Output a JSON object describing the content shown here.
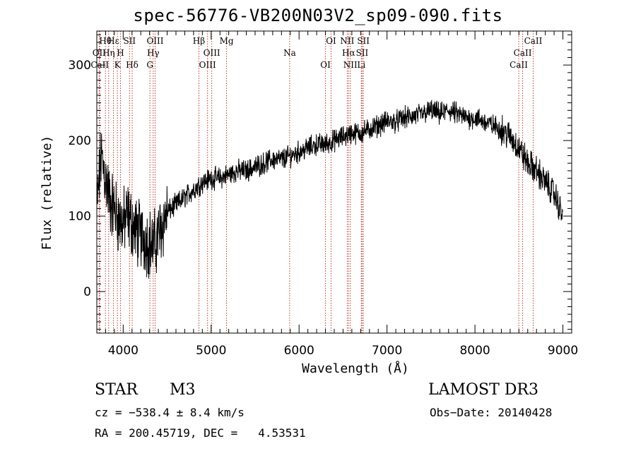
{
  "chart_data": {
    "type": "line",
    "title": "spec-56776-VB200N03V2_sp09-090.fits",
    "xlabel": "Wavelength (Å)",
    "ylabel": "Flux (relative)",
    "xlim": [
      3700,
      9100
    ],
    "ylim": [
      -55,
      345
    ],
    "x_ticks": [
      4000,
      5000,
      6000,
      7000,
      8000,
      9000
    ],
    "y_ticks": [
      0,
      100,
      200,
      300
    ],
    "grid": false,
    "series": [
      {
        "name": "flux",
        "x": [
          3700,
          3750,
          3800,
          3850,
          3900,
          3950,
          4000,
          4050,
          4100,
          4150,
          4200,
          4250,
          4300,
          4350,
          4400,
          4450,
          4500,
          4600,
          4700,
          4800,
          4900,
          5000,
          5100,
          5200,
          5300,
          5400,
          5500,
          5600,
          5700,
          5800,
          5900,
          6000,
          6100,
          6200,
          6300,
          6400,
          6500,
          6600,
          6700,
          6800,
          6900,
          7000,
          7100,
          7200,
          7300,
          7400,
          7500,
          7600,
          7700,
          7800,
          7900,
          8000,
          8100,
          8200,
          8300,
          8400,
          8500,
          8600,
          8700,
          8800,
          8900,
          9000
        ],
        "values": [
          110,
          180,
          150,
          120,
          110,
          95,
          90,
          100,
          90,
          80,
          75,
          70,
          65,
          60,
          75,
          90,
          105,
          115,
          125,
          135,
          145,
          150,
          150,
          155,
          160,
          160,
          165,
          170,
          175,
          175,
          180,
          185,
          190,
          195,
          195,
          200,
          205,
          210,
          210,
          215,
          220,
          225,
          225,
          230,
          232,
          235,
          240,
          235,
          240,
          235,
          230,
          230,
          225,
          220,
          215,
          205,
          190,
          170,
          160,
          145,
          130,
          100
        ]
      }
    ],
    "line_markers": [
      {
        "label": "Hθ",
        "x": 3798
      },
      {
        "label": "OII",
        "x": 3727
      },
      {
        "label": "CaII",
        "x": 3734
      },
      {
        "label": "Hε",
        "x": 3889
      },
      {
        "label": "Hη",
        "x": 3835
      },
      {
        "label": "K",
        "x": 3934
      },
      {
        "label": "SII",
        "x": 4072
      },
      {
        "label": "H",
        "x": 3969
      },
      {
        "label": "Hδ",
        "x": 4102
      },
      {
        "label": "OIII",
        "x": 4363
      },
      {
        "label": "Hγ",
        "x": 4341
      },
      {
        "label": "G",
        "x": 4304
      },
      {
        "label": "Hβ",
        "x": 4861
      },
      {
        "label": "OIII",
        "x": 5007
      },
      {
        "label": "OIII",
        "x": 4959
      },
      {
        "label": "Mg",
        "x": 5175
      },
      {
        "label": "Na",
        "x": 5893
      },
      {
        "label": "OI",
        "x": 6300
      },
      {
        "label": "OI",
        "x": 6364
      },
      {
        "label": "Hα",
        "x": 6563
      },
      {
        "label": "NII",
        "x": 6583
      },
      {
        "label": "NII",
        "x": 6548
      },
      {
        "label": "SII",
        "x": 6717
      },
      {
        "label": "Li",
        "x": 6708
      },
      {
        "label": "SII",
        "x": 6731
      },
      {
        "label": "CaII",
        "x": 8542
      },
      {
        "label": "CaII",
        "x": 8498
      },
      {
        "label": "CaII",
        "x": 8662
      }
    ]
  },
  "info": {
    "obj_class": "STAR",
    "subclass": "M3",
    "survey": "LAMOST DR3",
    "cz": "cz = −538.4 ± 8.4 km/s",
    "obs_date": "Obs−Date: 20140428",
    "coords": "RA = 200.45719, DEC =   4.53531"
  }
}
